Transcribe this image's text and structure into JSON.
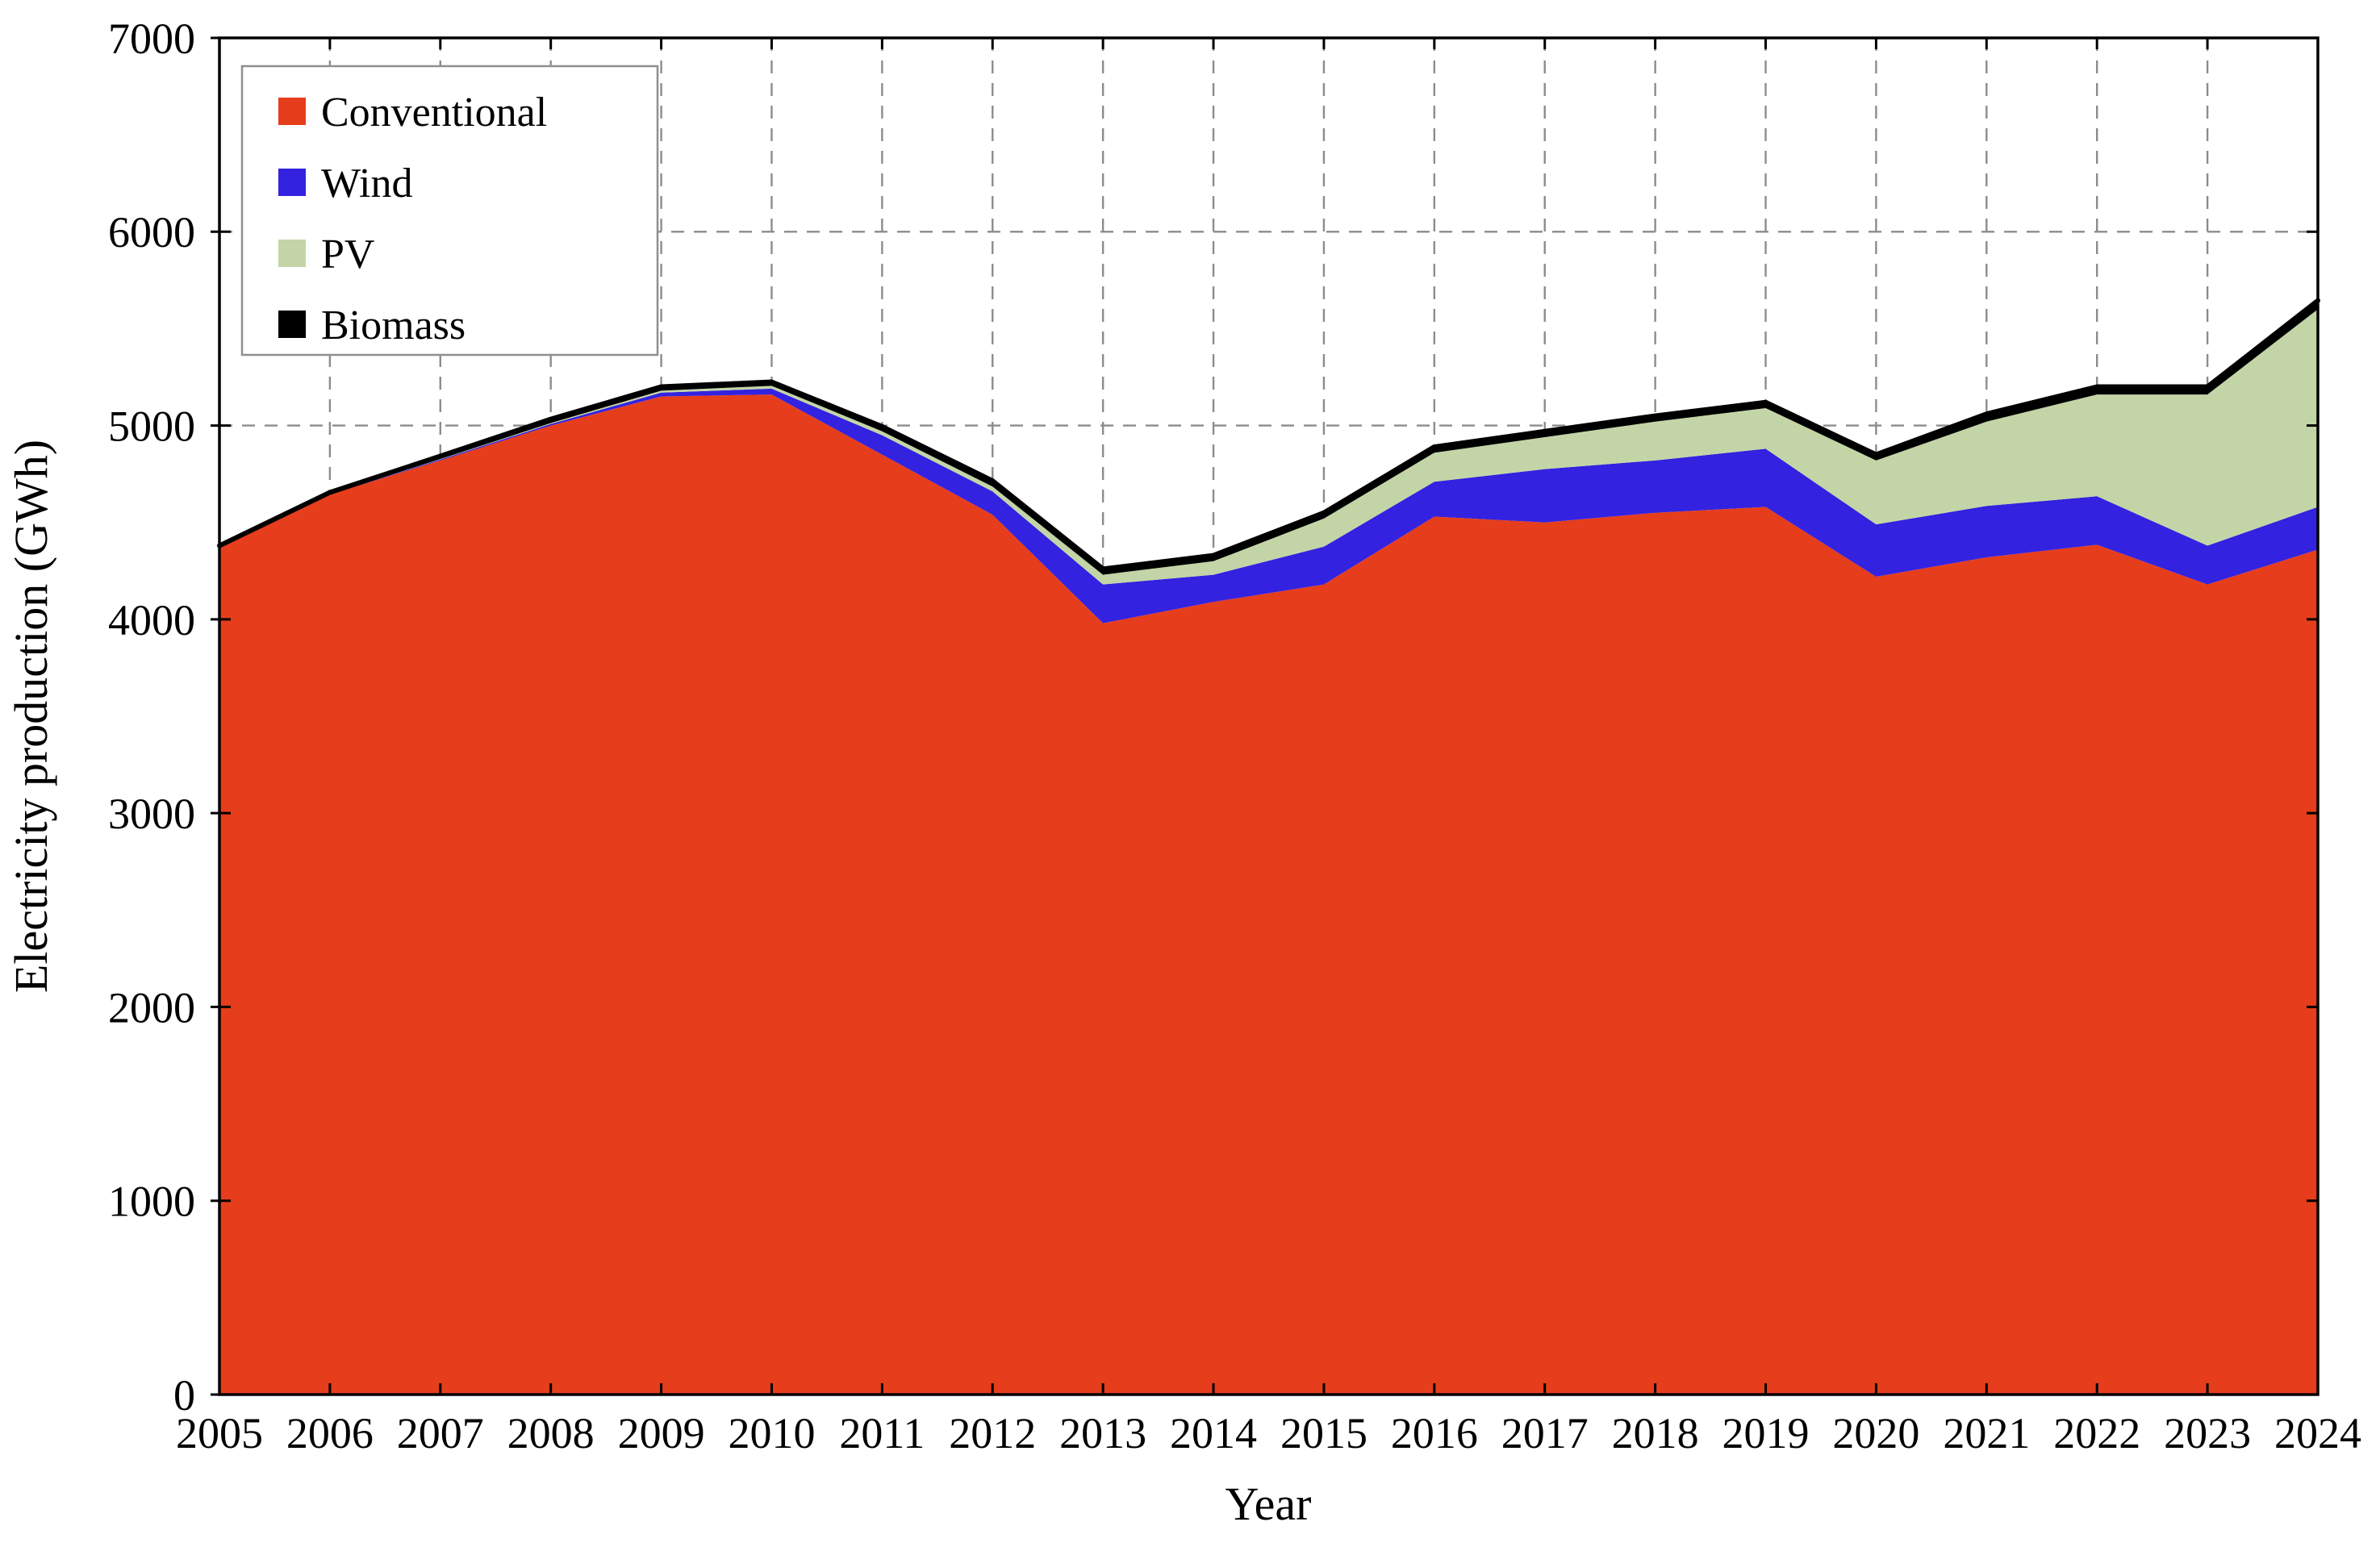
{
  "figure": {
    "background": "#ffffff",
    "frame_color": "#000000",
    "grid_color": "#8c8c8c",
    "legend_border_color": "#8f8f8f",
    "text_color": "#000000"
  },
  "chart_data": {
    "type": "area",
    "stacked": true,
    "title": "",
    "xlabel": "Year",
    "ylabel": "Electricity production (GWh)",
    "x": [
      2005,
      2006,
      2007,
      2008,
      2009,
      2010,
      2011,
      2012,
      2013,
      2014,
      2015,
      2016,
      2017,
      2018,
      2019,
      2020,
      2021,
      2022,
      2023,
      2024
    ],
    "xlim": [
      2005,
      2024
    ],
    "ylim": [
      0,
      7000
    ],
    "ytick_step": 1000,
    "grid": "dashed",
    "legend_position": "top-left",
    "legend_entries": [
      "Conventional",
      "Wind",
      "PV",
      "Biomass"
    ],
    "series": [
      {
        "name": "Conventional",
        "color": "#e63d1c",
        "values": [
          4370,
          4645,
          4820,
          5000,
          5150,
          5160,
          4850,
          4540,
          3980,
          4090,
          4180,
          4530,
          4500,
          4550,
          4580,
          4220,
          4320,
          4385,
          4180,
          4360
        ]
      },
      {
        "name": "Wind",
        "color": "#3322e0",
        "values": [
          0,
          0,
          5,
          8,
          20,
          30,
          100,
          120,
          200,
          140,
          195,
          180,
          275,
          270,
          300,
          270,
          265,
          250,
          200,
          220
        ]
      },
      {
        "name": "PV",
        "color": "#c3d5a6",
        "values": [
          0,
          0,
          2,
          5,
          10,
          15,
          20,
          25,
          50,
          70,
          145,
          150,
          165,
          200,
          210,
          330,
          435,
          525,
          780,
          1020
        ]
      },
      {
        "name": "Biomass",
        "color": "#000000",
        "values": [
          10,
          10,
          15,
          20,
          20,
          20,
          25,
          30,
          30,
          30,
          30,
          30,
          30,
          30,
          30,
          30,
          40,
          40,
          40,
          45
        ]
      }
    ],
    "totals": [
      4380,
      4655,
      4842,
      5033,
      5200,
      5225,
      4995,
      4715,
      4260,
      4330,
      4550,
      4890,
      4970,
      5050,
      5120,
      4850,
      5060,
      5200,
      5200,
      5645
    ]
  }
}
